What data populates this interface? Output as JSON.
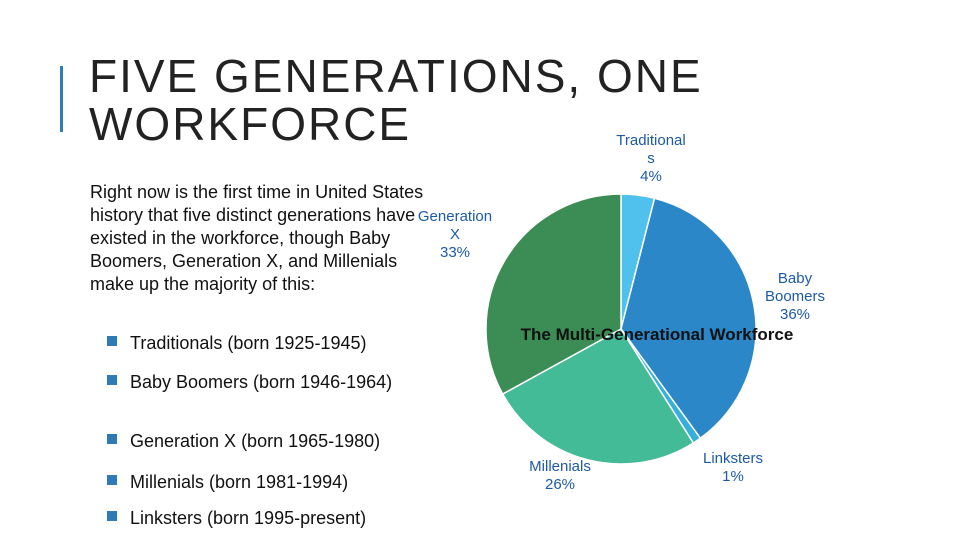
{
  "slide": {
    "title": "FIVE GENERATIONS, ONE WORKFORCE",
    "intro": "Right now is the first time in United States history that five distinct generations have existed in the workforce, though Baby Boomers, Generation X, and Millenials make up the majority of this:",
    "bullets": [
      "Traditionals (born 1925-1945)",
      "Baby Boomers (born 1946-1964)",
      "Generation X (born 1965-1980)",
      "Millenials (born 1981-1994)",
      "Linksters (born 1995-present)"
    ],
    "accent_color": "#2e7db8"
  },
  "chart_data": {
    "type": "pie",
    "title": "The Multi-Generational Workforce",
    "slices": [
      {
        "label_lines": [
          "Traditional",
          "s",
          "4%"
        ],
        "value": 4,
        "color": "#4fc1ec"
      },
      {
        "label_lines": [
          "Baby",
          "Boomers",
          "36%"
        ],
        "value": 36,
        "color": "#2b87c8"
      },
      {
        "label_lines": [
          "Linksters",
          "1%"
        ],
        "value": 1,
        "color": "#36b0d8"
      },
      {
        "label_lines": [
          "Millenials",
          "26%"
        ],
        "value": 26,
        "color": "#43bb96"
      },
      {
        "label_lines": [
          "Generation",
          "X",
          "33%"
        ],
        "value": 33,
        "color": "#3b8c55"
      }
    ],
    "legend": "none",
    "start_angle": "12 o'clock, clockwise"
  }
}
